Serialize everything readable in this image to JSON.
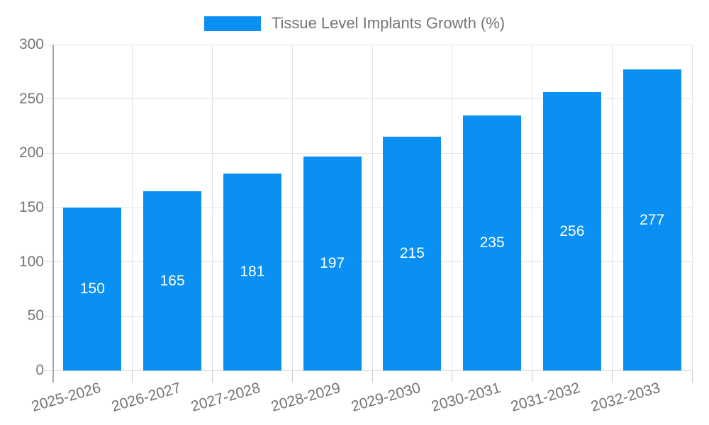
{
  "legend": {
    "label": "Tissue Level Implants Growth (%)"
  },
  "chart_data": {
    "type": "bar",
    "title": "Tissue Level Implants Growth (%)",
    "categories": [
      "2025-2026",
      "2026-2027",
      "2027-2028",
      "2028-2029",
      "2029-2030",
      "2030-2031",
      "2031-2032",
      "2032-2033"
    ],
    "values": [
      150,
      165,
      181,
      197,
      215,
      235,
      256,
      277
    ],
    "xlabel": "",
    "ylabel": "",
    "ylim": [
      0,
      300
    ],
    "yticks": [
      0,
      50,
      100,
      150,
      200,
      250,
      300
    ],
    "grid": "on",
    "legend_position": "top-center",
    "bar_color": "#0A90F2",
    "value_label_color": "#FFFFFF"
  },
  "colors": {
    "bar": "#0A90F2",
    "gridline": "#E3E3E3",
    "axis_line": "#AAAAAA",
    "tick_label": "#757575",
    "legend_text": "#757575",
    "background": "#FFFFFF"
  }
}
